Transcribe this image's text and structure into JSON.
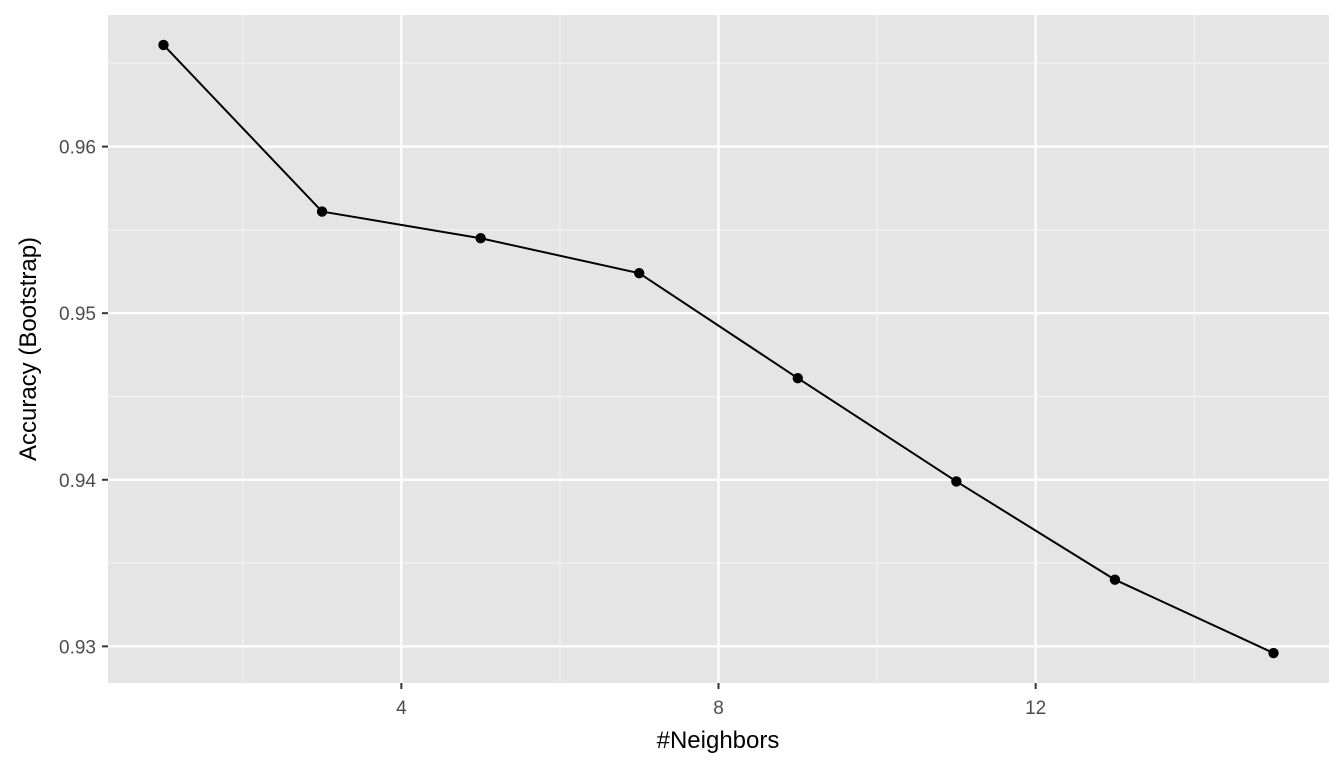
{
  "chart_data": {
    "type": "line",
    "title": "",
    "xlabel": "#Neighbors",
    "ylabel": "Accuracy (Bootstrap)",
    "x": [
      1,
      3,
      5,
      7,
      9,
      11,
      13,
      15
    ],
    "series": [
      {
        "name": "Accuracy (Bootstrap)",
        "values": [
          0.9661,
          0.9561,
          0.9545,
          0.9524,
          0.9461,
          0.9399,
          0.934,
          0.9296
        ]
      }
    ],
    "xlim": [
      0.3,
      15.7
    ],
    "ylim": [
      0.9278,
      0.9679
    ],
    "x_major_ticks": [
      4,
      8,
      12
    ],
    "x_minor_ticks": [
      2,
      6,
      10,
      14
    ],
    "x_tick_labels": [
      "4",
      "8",
      "12"
    ],
    "y_major_ticks": [
      0.93,
      0.94,
      0.95,
      0.96
    ],
    "y_minor_ticks": [
      0.935,
      0.945,
      0.955,
      0.965
    ],
    "y_tick_labels": [
      "0.93",
      "0.94",
      "0.95",
      "0.96"
    ],
    "grid": true,
    "legend": "none",
    "colors": {
      "panel_background": "#e5e5e5",
      "grid_major": "#ffffff",
      "grid_minor": "#f2f2f2",
      "line": "#000000",
      "point": "#000000",
      "tick_mark": "#333333"
    }
  }
}
